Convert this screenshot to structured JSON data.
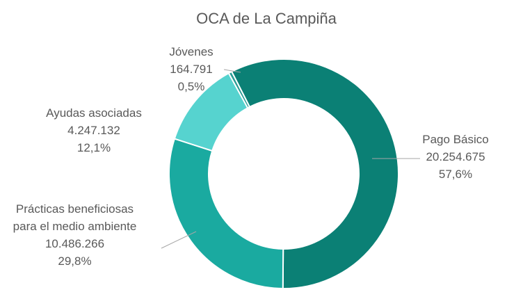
{
  "chart_data": {
    "type": "donut",
    "title": "OCA de La Campiña",
    "categories": [
      "Pago Básico",
      "Prácticas beneficiosas para el medio ambiente",
      "Ayudas asociadas",
      "Jóvenes"
    ],
    "values": [
      20254675,
      10486266,
      4247132,
      164791
    ],
    "value_labels": [
      "20.254.675",
      "10.486.266",
      "4.247.132",
      "164.791"
    ],
    "percentages": [
      57.6,
      29.8,
      12.1,
      0.5
    ],
    "percentage_labels": [
      "57,6%",
      "29,8%",
      "12,1%",
      "0,5%"
    ],
    "colors": [
      "#0b8075",
      "#1aaaa0",
      "#56d3cf",
      "#2a9d95"
    ]
  }
}
